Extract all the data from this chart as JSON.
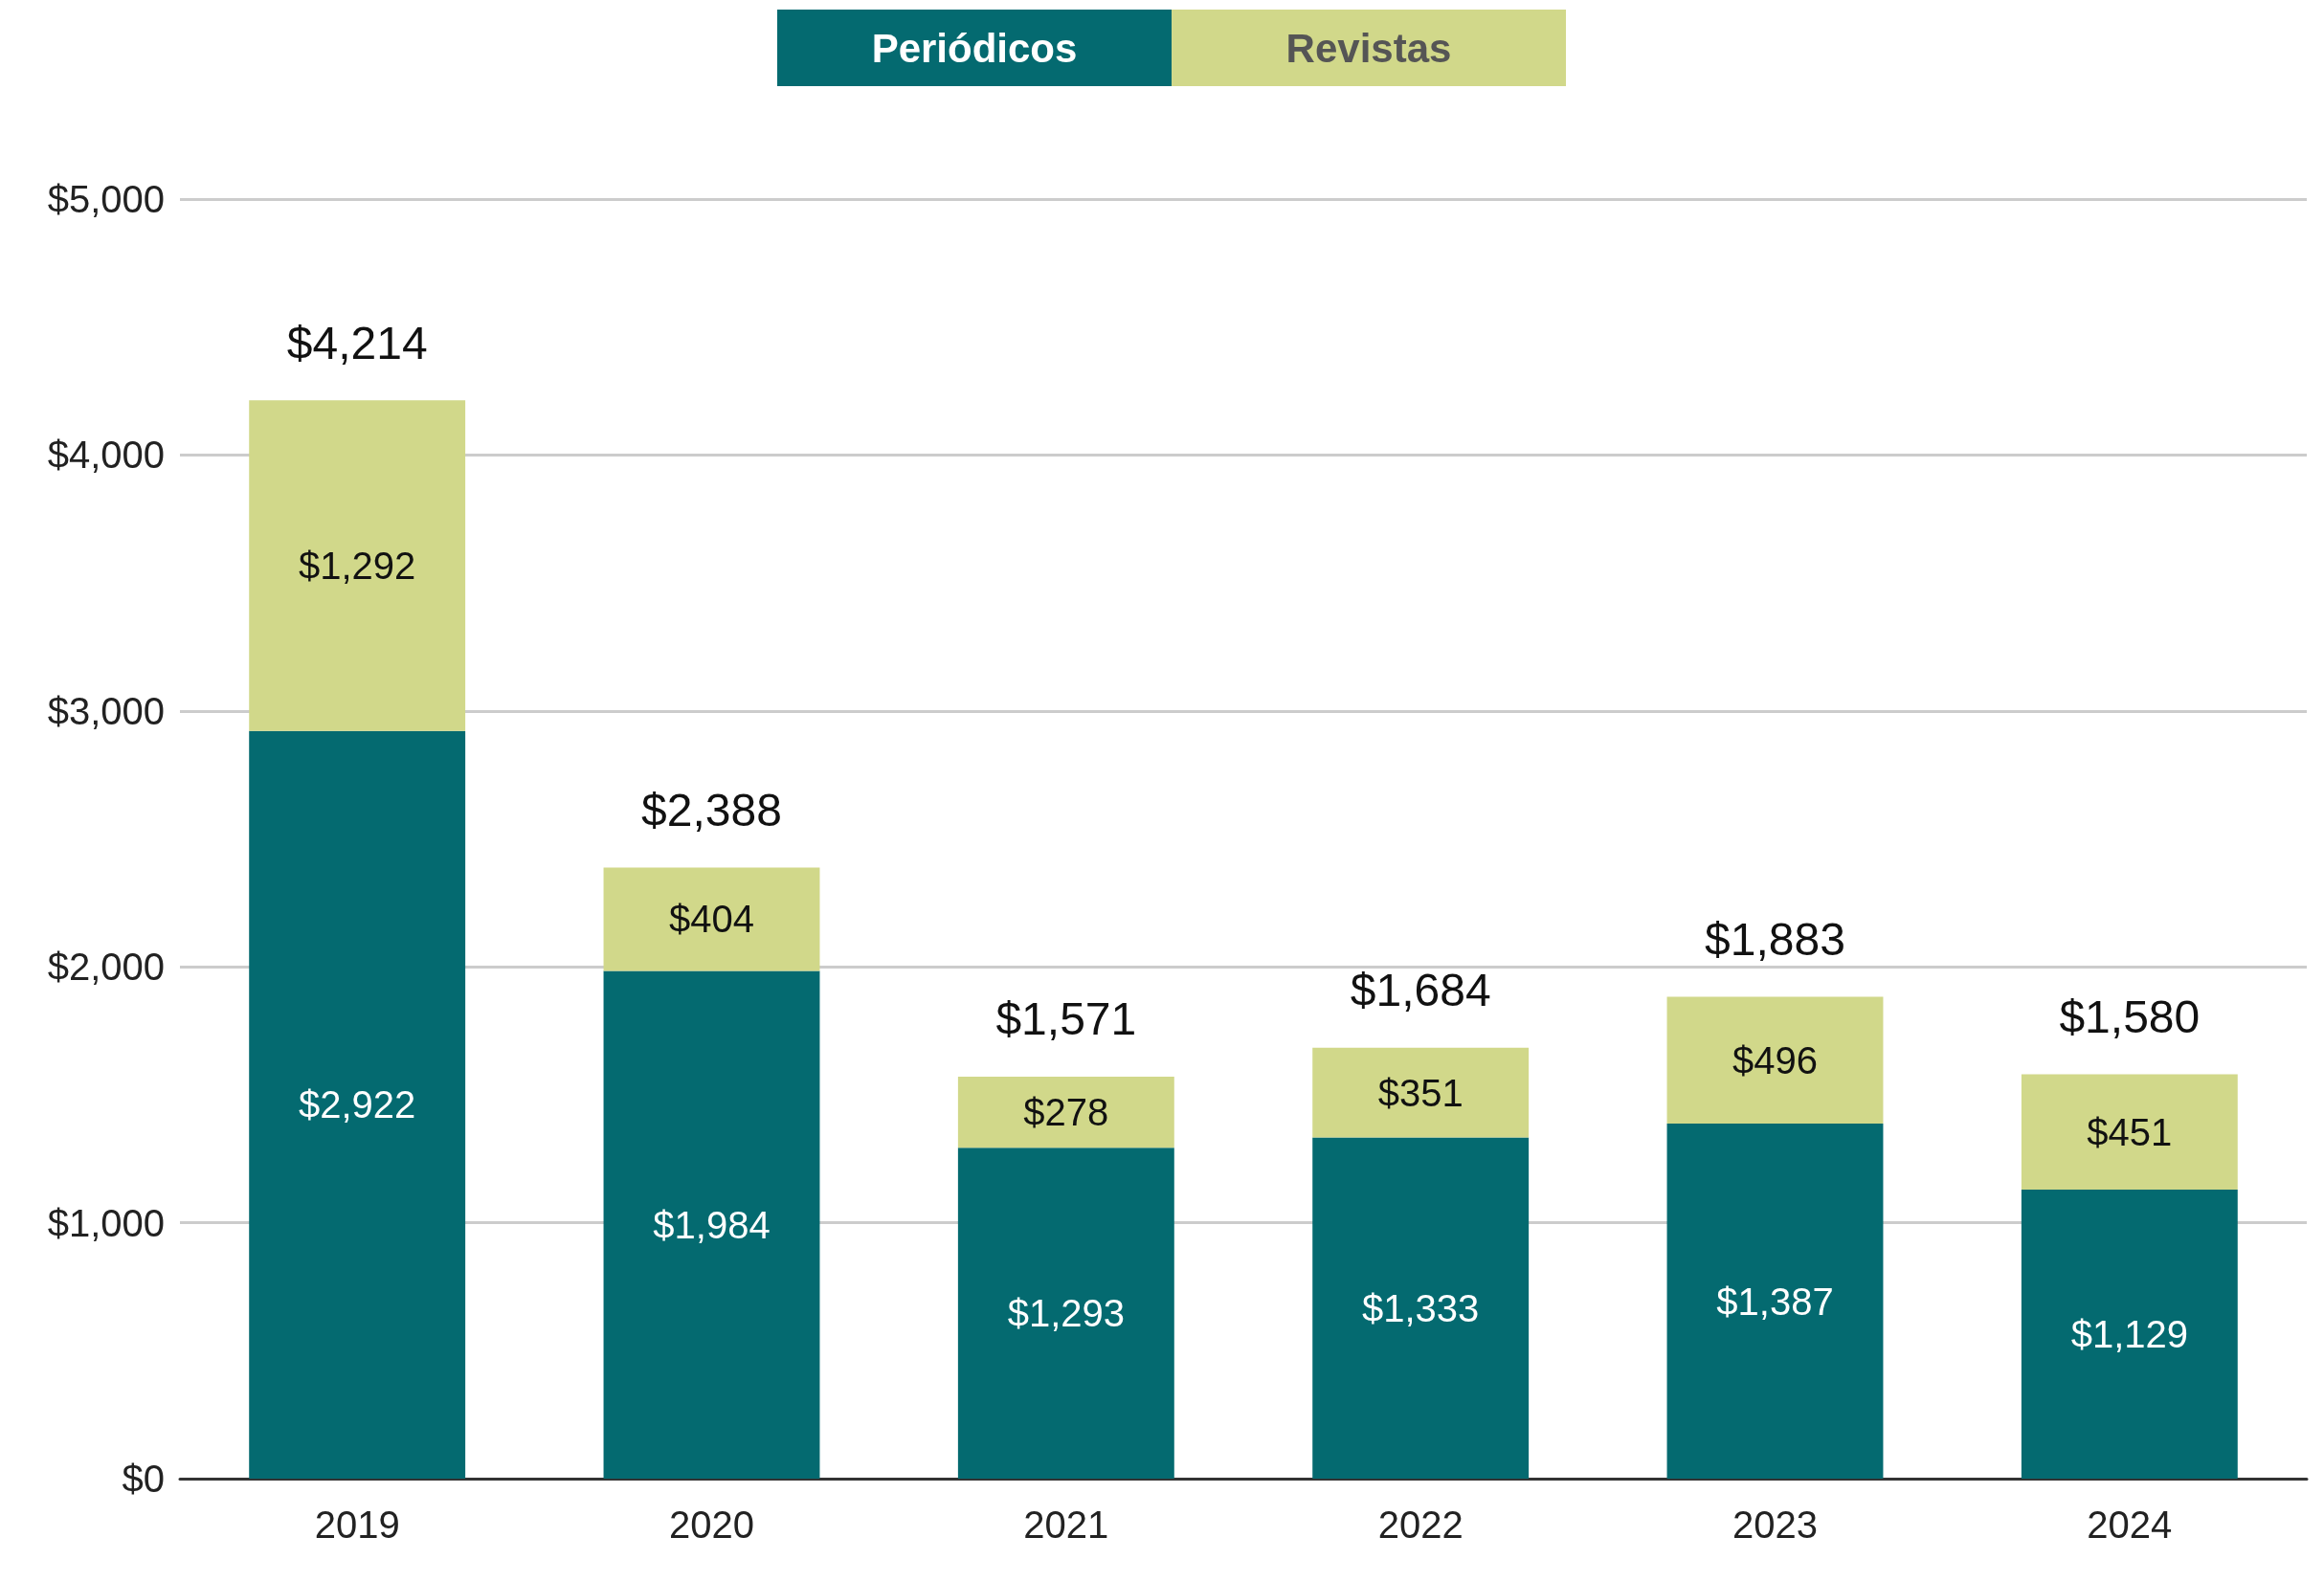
{
  "chart_data": {
    "type": "bar",
    "stacked": true,
    "categories": [
      "2019",
      "2020",
      "2021",
      "2022",
      "2023",
      "2024"
    ],
    "series": [
      {
        "name": "Periódicos",
        "color": "#046a70",
        "values": [
          2922,
          1984,
          1293,
          1333,
          1387,
          1129
        ],
        "value_labels": [
          "$2,922",
          "$1,984",
          "$1,293",
          "$1,333",
          "$1,387",
          "$1,129"
        ]
      },
      {
        "name": "Revistas",
        "color": "#d1d88a",
        "values": [
          1292,
          404,
          278,
          351,
          496,
          451
        ],
        "value_labels": [
          "$1,292",
          "$404",
          "$278",
          "$351",
          "$496",
          "$451"
        ]
      }
    ],
    "totals": [
      "$4,214",
      "$2,388",
      "$1,571",
      "$1,684",
      "$1,883",
      "$1,580"
    ],
    "ylim": [
      0,
      5000
    ],
    "yticks": [
      {
        "value": 0,
        "label": "$0"
      },
      {
        "value": 1000,
        "label": "$1,000"
      },
      {
        "value": 2000,
        "label": "$2,000"
      },
      {
        "value": 3000,
        "label": "$3,000"
      },
      {
        "value": 4000,
        "label": "$4,000"
      },
      {
        "value": 5000,
        "label": "$5,000"
      }
    ],
    "grid": "y",
    "legend": "top"
  }
}
